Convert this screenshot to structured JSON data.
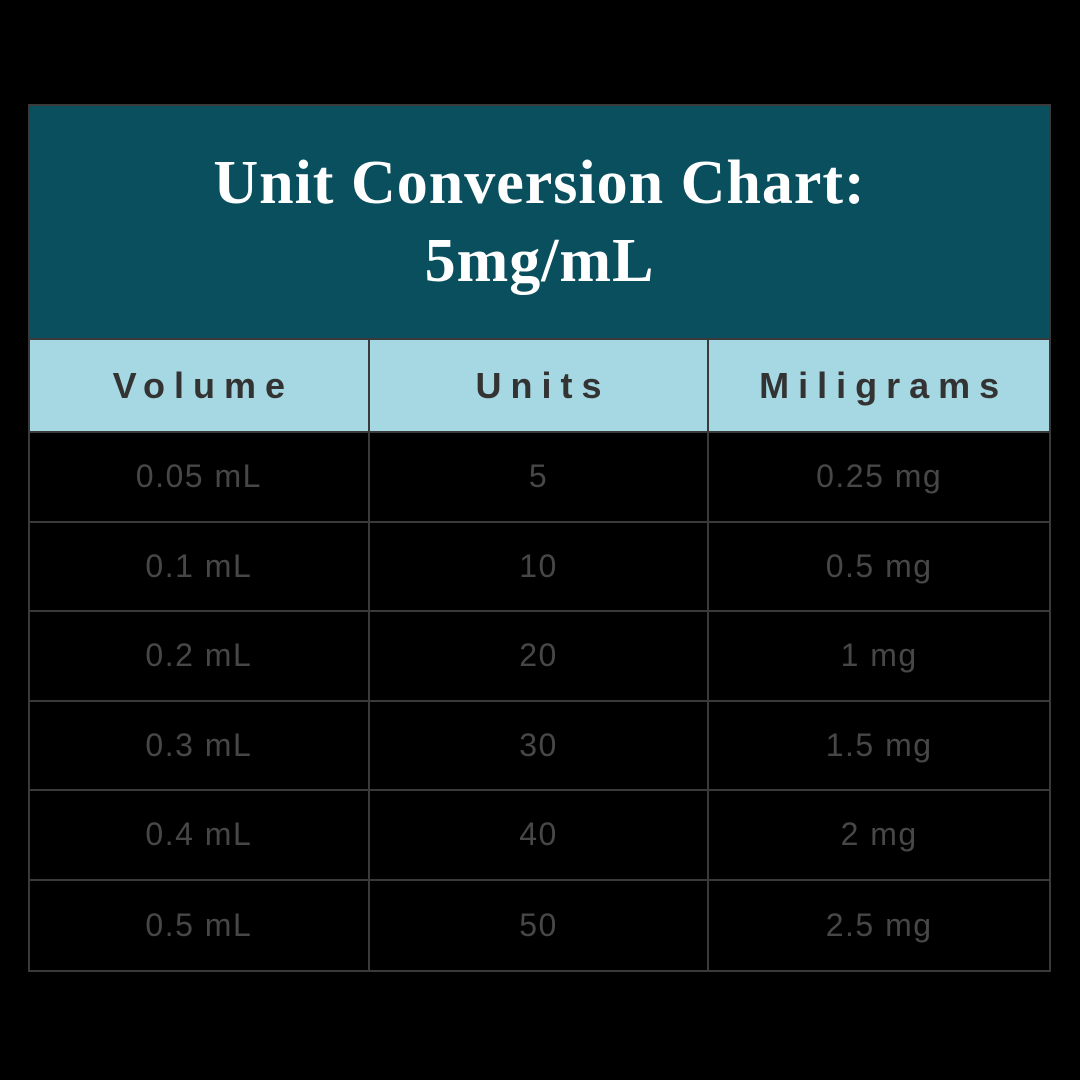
{
  "title": {
    "line1": "Unit Conversion Chart:",
    "line2": "5mg/mL"
  },
  "table": {
    "columns": [
      "Volume",
      "Units",
      "Miligrams"
    ],
    "rows": [
      {
        "cells": [
          "0.05 mL",
          "5",
          "0.25 mg"
        ]
      },
      {
        "cells": [
          "0.1 mL",
          "10",
          "0.5 mg"
        ]
      },
      {
        "cells": [
          "0.2 mL",
          "20",
          "1 mg"
        ]
      },
      {
        "cells": [
          "0.3 mL",
          "30",
          "1.5 mg"
        ]
      },
      {
        "cells": [
          "0.4 mL",
          "40",
          "2 mg"
        ]
      },
      {
        "cells": [
          "0.5 mL",
          "50",
          "2.5 mg"
        ]
      }
    ]
  },
  "colors": {
    "page_background": "#000000",
    "title_band_background": "#0a4f5e",
    "title_text": "#ffffff",
    "header_row_background": "#a5d8e2",
    "header_row_text": "#333333",
    "body_row_background": "#000000",
    "body_text": "#474747",
    "grid_border": "#3a3a3a"
  },
  "chart_data": {
    "type": "table",
    "title": "Unit Conversion Chart: 5mg/mL",
    "concentration": "5mg/mL",
    "columns": [
      "Volume",
      "Units",
      "Miligrams"
    ],
    "rows": [
      [
        "0.05 mL",
        "5",
        "0.25 mg"
      ],
      [
        "0.1 mL",
        "10",
        "0.5 mg"
      ],
      [
        "0.2 mL",
        "20",
        "1 mg"
      ],
      [
        "0.3 mL",
        "30",
        "1.5 mg"
      ],
      [
        "0.4 mL",
        "40",
        "2 mg"
      ],
      [
        "0.5 mL",
        "50",
        "2.5 mg"
      ]
    ],
    "volume_ml": [
      0.05,
      0.1,
      0.2,
      0.3,
      0.4,
      0.5
    ],
    "units": [
      5,
      10,
      20,
      30,
      40,
      50
    ],
    "milligrams": [
      0.25,
      0.5,
      1,
      1.5,
      2,
      2.5
    ]
  }
}
